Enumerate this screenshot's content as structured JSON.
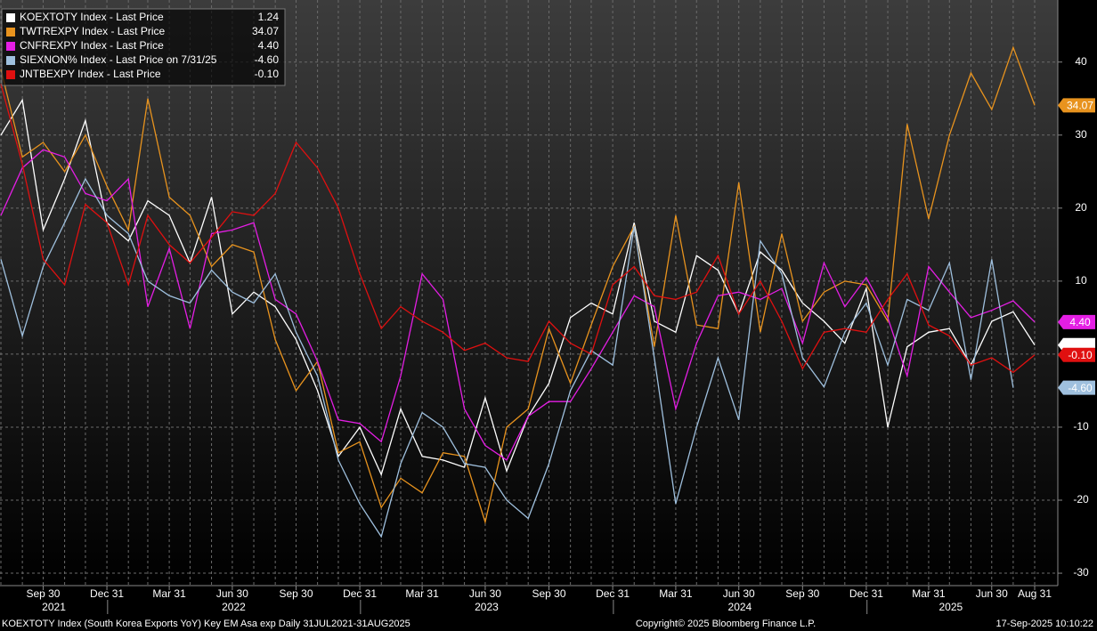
{
  "chart_data": {
    "type": "line",
    "x": [
      "2021-07-31",
      "2021-08-31",
      "2021-09-30",
      "2021-10-31",
      "2021-11-30",
      "2021-12-31",
      "2022-01-31",
      "2022-02-28",
      "2022-03-31",
      "2022-04-30",
      "2022-05-31",
      "2022-06-30",
      "2022-07-31",
      "2022-08-31",
      "2022-09-30",
      "2022-10-31",
      "2022-11-30",
      "2022-12-31",
      "2023-01-31",
      "2023-02-28",
      "2023-03-31",
      "2023-04-30",
      "2023-05-31",
      "2023-06-30",
      "2023-07-31",
      "2023-08-31",
      "2023-09-30",
      "2023-10-31",
      "2023-11-30",
      "2023-12-31",
      "2024-01-31",
      "2024-02-29",
      "2024-03-31",
      "2024-04-30",
      "2024-05-31",
      "2024-06-30",
      "2024-07-31",
      "2024-08-31",
      "2024-09-30",
      "2024-10-31",
      "2024-11-30",
      "2024-12-31",
      "2025-01-31",
      "2025-02-28",
      "2025-03-31",
      "2025-04-30",
      "2025-05-31",
      "2025-06-30",
      "2025-07-31",
      "2025-08-31"
    ],
    "series": [
      {
        "name": "KOEXTOTY Index - Last Price",
        "color": "#ffffff",
        "last_label": "1.24",
        "values": [
          30,
          34.8,
          17,
          24,
          32,
          18,
          15.5,
          21,
          19,
          12.5,
          21.5,
          5.5,
          8.5,
          6.5,
          2,
          -5,
          -14,
          -10,
          -16.5,
          -7.5,
          -14,
          -14.5,
          -15.5,
          -6,
          -16,
          -8.5,
          -4,
          5,
          7,
          5.5,
          18,
          4.5,
          3,
          13.5,
          11.5,
          5.5,
          14,
          11.5,
          7,
          4.5,
          1.5,
          9,
          -10,
          1,
          3,
          3.5,
          -1.5,
          4.5,
          5.8,
          1.24
        ]
      },
      {
        "name": "TWTREXPY Index - Last Price",
        "color": "#e8931e",
        "last_label": "34.07",
        "values": [
          39,
          27,
          29,
          25,
          30,
          23,
          17,
          35,
          21.5,
          19,
          12,
          15,
          14,
          2,
          -5,
          -1,
          -13.5,
          -12,
          -21,
          -17,
          -19,
          -13.5,
          -14,
          -23,
          -10,
          -7.5,
          3.5,
          -4,
          4,
          12,
          17.5,
          1,
          19,
          4,
          3.5,
          23.5,
          3,
          16.5,
          4.5,
          8.5,
          10,
          9.5,
          4.5,
          31.5,
          18.5,
          30,
          38.5,
          33.5,
          42,
          34.07
        ]
      },
      {
        "name": "CNFREXPY Index - Last Price",
        "color": "#e41ee4",
        "last_label": "4.40",
        "values": [
          19,
          25.5,
          28,
          27,
          22,
          21,
          24,
          6.5,
          14.5,
          3.5,
          16.5,
          17,
          18,
          7.5,
          5.5,
          -1,
          -9,
          -9.5,
          -12,
          -3,
          11,
          7.5,
          -7.5,
          -12.5,
          -14.5,
          -8.5,
          -6.5,
          -6.5,
          -2,
          3,
          8,
          6.5,
          -7.5,
          1.5,
          8,
          8.5,
          7.5,
          9,
          1.5,
          12.5,
          6.5,
          10.5,
          5,
          -3,
          12,
          8.5,
          5,
          6,
          7.3,
          4.4
        ]
      },
      {
        "name": "SIEXNON% Index - Last Price on 7/31/25",
        "color": "#9fc0de",
        "last_label": "-4.60",
        "values": [
          13,
          2.5,
          12,
          18,
          24,
          19,
          16.5,
          10,
          8,
          7,
          11.5,
          8.5,
          7,
          11,
          3,
          -3,
          -14.5,
          -20.5,
          -25,
          -15,
          -8,
          -10,
          -15,
          -15.5,
          -20,
          -22.5,
          -15,
          -5,
          0.5,
          -1.5,
          17.5,
          -0.5,
          -20.5,
          -10,
          -0.5,
          -9,
          15.5,
          11,
          -0.5,
          -4.5,
          3,
          7,
          -1.5,
          7.5,
          6,
          12.5,
          -3.5,
          13,
          -4.6,
          null
        ]
      },
      {
        "name": "JNTBEXPY Index - Last Price",
        "color": "#e01010",
        "last_label": "-0.10",
        "values": [
          37,
          26,
          13,
          9.5,
          20.5,
          18,
          9.5,
          19,
          15,
          12.5,
          16,
          19.5,
          19,
          22,
          29,
          25.5,
          20,
          11,
          3.5,
          6.5,
          4.5,
          3,
          0.5,
          1.5,
          -0.5,
          -1,
          4.5,
          1.5,
          0,
          9.5,
          12,
          8,
          7.5,
          8.5,
          13.5,
          5.5,
          10,
          4.5,
          -2,
          3,
          3.5,
          3,
          7.5,
          11,
          4,
          2.5,
          -1.5,
          -0.5,
          -2.5,
          -0.1
        ]
      }
    ],
    "ylim": [
      -31.7,
      48.5
    ],
    "yticks": [
      -30,
      -20,
      -10,
      0,
      10,
      20,
      30,
      40
    ],
    "grid": true,
    "xticks": [
      {
        "value": "2021-09-30",
        "label": "Sep 30"
      },
      {
        "value": "2021-12-31",
        "label": "Dec 31"
      },
      {
        "value": "2022-03-31",
        "label": "Mar 31"
      },
      {
        "value": "2022-06-30",
        "label": "Jun 30"
      },
      {
        "value": "2022-09-30",
        "label": "Sep 30"
      },
      {
        "value": "2022-12-31",
        "label": "Dec 31"
      },
      {
        "value": "2023-03-31",
        "label": "Mar 31"
      },
      {
        "value": "2023-06-30",
        "label": "Jun 30"
      },
      {
        "value": "2023-09-30",
        "label": "Sep 30"
      },
      {
        "value": "2023-12-31",
        "label": "Dec 31"
      },
      {
        "value": "2024-03-31",
        "label": "Mar 31"
      },
      {
        "value": "2024-06-30",
        "label": "Jun 30"
      },
      {
        "value": "2024-09-30",
        "label": "Sep 30"
      },
      {
        "value": "2024-12-31",
        "label": "Dec 31"
      },
      {
        "value": "2025-03-31",
        "label": "Mar 31"
      },
      {
        "value": "2025-06-30",
        "label": "Jun 30"
      },
      {
        "value": "2025-08-31",
        "label": "Aug 31"
      }
    ],
    "year_labels": [
      "2021",
      "2022",
      "2023",
      "2024",
      "2025"
    ],
    "legend": "top-left",
    "source_note": "KOEXTOTY Index (South Korea Exports YoY) Key EM Asa exp  Daily 31JUL2021-31AUG2025",
    "copyright": "Copyright© 2025 Bloomberg Finance L.P.",
    "timestamp": "17-Sep-2025 10:10:22"
  }
}
